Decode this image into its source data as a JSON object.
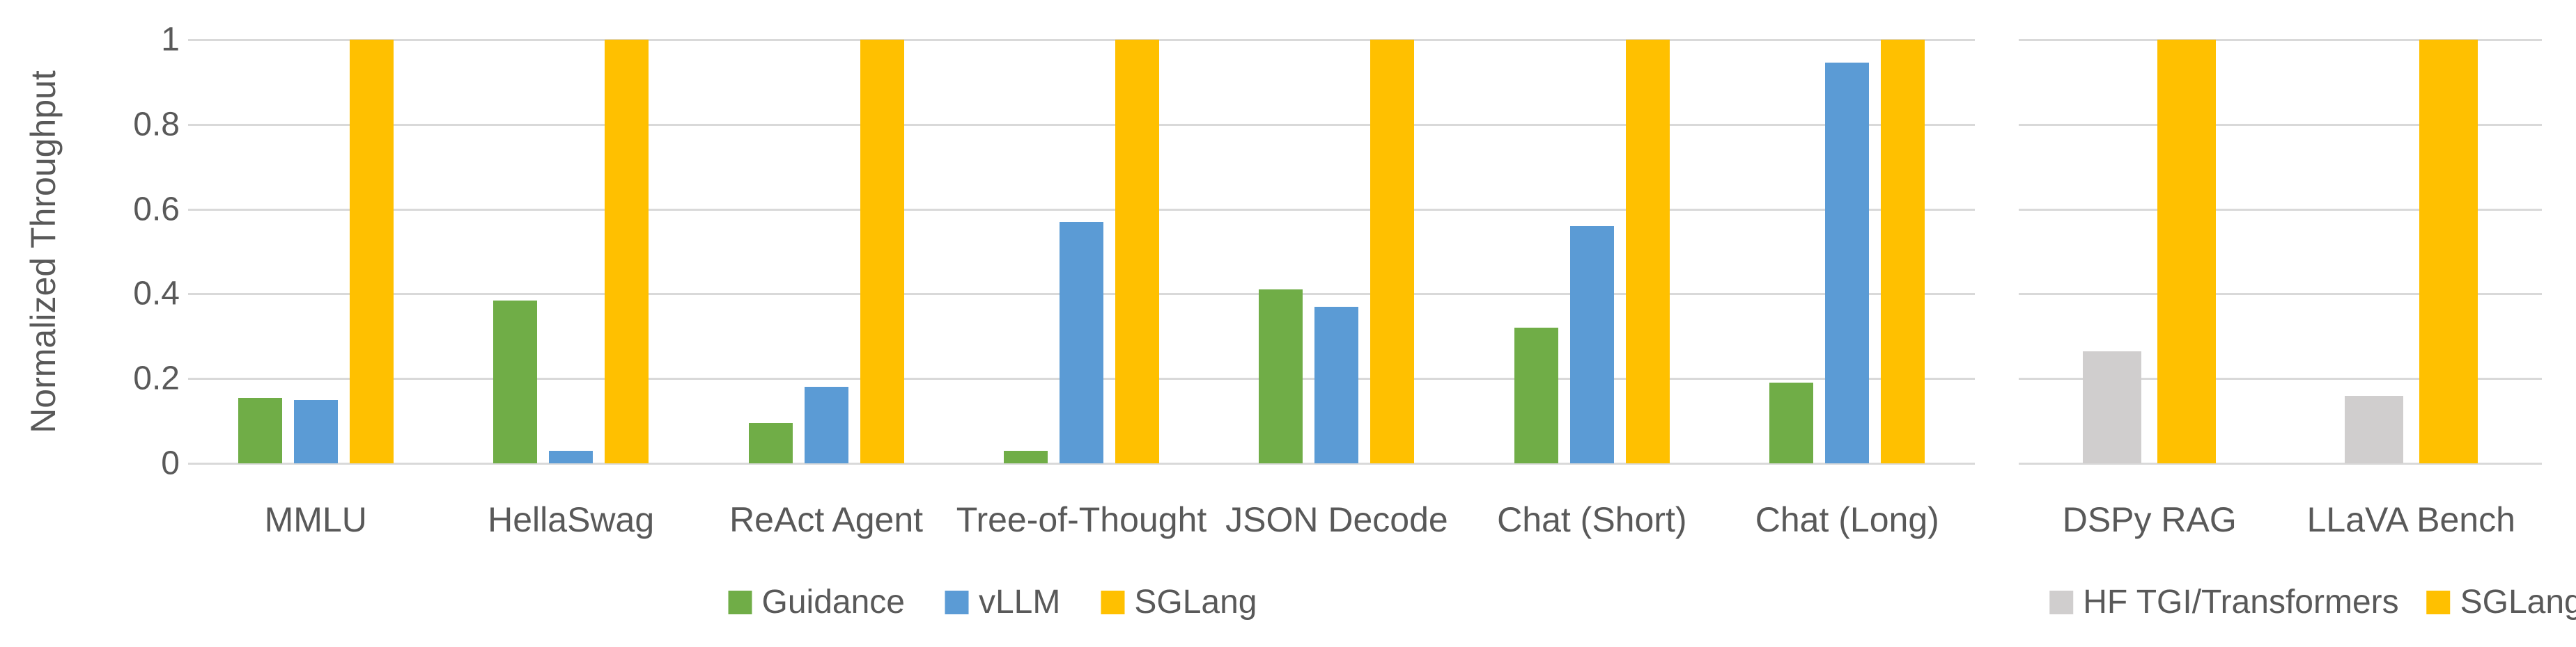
{
  "colors": {
    "background": "#FFFFFF",
    "axis_text": "#595959",
    "gridline": "#D9D9D9"
  },
  "chart_data": [
    {
      "id": "left",
      "type": "bar",
      "title": "",
      "xlabel": "",
      "ylabel": "Normalized Throughput",
      "ylim": [
        0,
        1
      ],
      "yticks": [
        0,
        0.2,
        0.4,
        0.6,
        0.8,
        1
      ],
      "ytick_labels": [
        "0",
        "0.2",
        "0.4",
        "0.6",
        "0.8",
        "1"
      ],
      "grid": true,
      "legend_position": "bottom",
      "categories": [
        "MMLU",
        "HellaSwag",
        "ReAct Agent",
        "Tree-of-Thought",
        "JSON Decode",
        "Chat (Short)",
        "Chat (Long)"
      ],
      "series": [
        {
          "name": "Guidance",
          "color": "#70AD47",
          "values": [
            0.155,
            0.385,
            0.095,
            0.03,
            0.41,
            0.32,
            0.19
          ]
        },
        {
          "name": "vLLM",
          "color": "#5B9BD5",
          "values": [
            0.15,
            0.03,
            0.18,
            0.57,
            0.37,
            0.56,
            0.945
          ]
        },
        {
          "name": "SGLang",
          "color": "#FFC000",
          "values": [
            1,
            1,
            1,
            1,
            1,
            1,
            1
          ]
        }
      ]
    },
    {
      "id": "right",
      "type": "bar",
      "title": "",
      "xlabel": "",
      "ylabel": "",
      "ylim": [
        0,
        1
      ],
      "yticks": [
        0,
        0.2,
        0.4,
        0.6,
        0.8,
        1
      ],
      "ytick_labels": [],
      "grid": true,
      "legend_position": "bottom",
      "categories": [
        "DSPy RAG",
        "LLaVA Bench"
      ],
      "series": [
        {
          "name": "HF TGI/Transformers",
          "color": "#D0CECE",
          "values": [
            0.265,
            0.16
          ]
        },
        {
          "name": "SGLang",
          "color": "#FFC000",
          "values": [
            1,
            1
          ]
        }
      ]
    }
  ]
}
